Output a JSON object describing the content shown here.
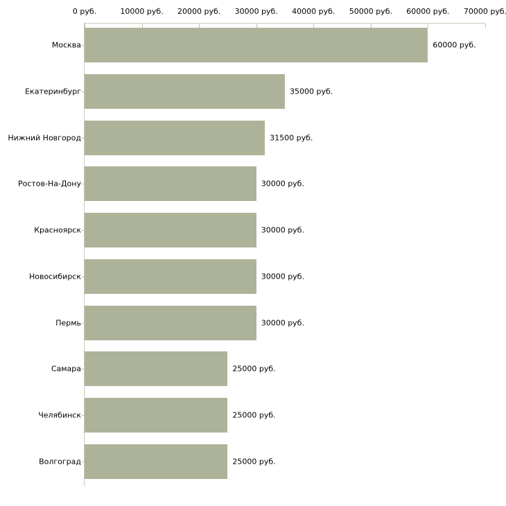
{
  "chart_data": {
    "type": "bar",
    "orientation": "horizontal",
    "title": "",
    "xlabel": "",
    "ylabel": "",
    "grid": false,
    "legend": null,
    "xlim": [
      0,
      70000
    ],
    "x_ticks": [
      0,
      10000,
      20000,
      30000,
      40000,
      50000,
      60000,
      70000
    ],
    "x_tick_labels": [
      "0 руб.",
      "10000 руб.",
      "20000 руб.",
      "30000 руб.",
      "40000 руб.",
      "50000 руб.",
      "60000 руб.",
      "70000 руб."
    ],
    "categories": [
      "Москва",
      "Екатеринбург",
      "Нижний Новгород",
      "Ростов-На-Дону",
      "Красноярск",
      "Новосибирск",
      "Пермь",
      "Самара",
      "Челябинск",
      "Волгоград"
    ],
    "values": [
      60000,
      35000,
      31500,
      30000,
      30000,
      30000,
      30000,
      25000,
      25000,
      25000
    ],
    "value_labels": [
      "60000 руб.",
      "35000 руб.",
      "31500 руб.",
      "30000 руб.",
      "30000 руб.",
      "30000 руб.",
      "30000 руб.",
      "25000 руб.",
      "25000 руб.",
      "25000 руб."
    ],
    "colors": {
      "bar": "#adb399",
      "axis": "#c9cab8",
      "tick": "#c2c4b0",
      "text": "#000000",
      "background": "#ffffff"
    }
  }
}
